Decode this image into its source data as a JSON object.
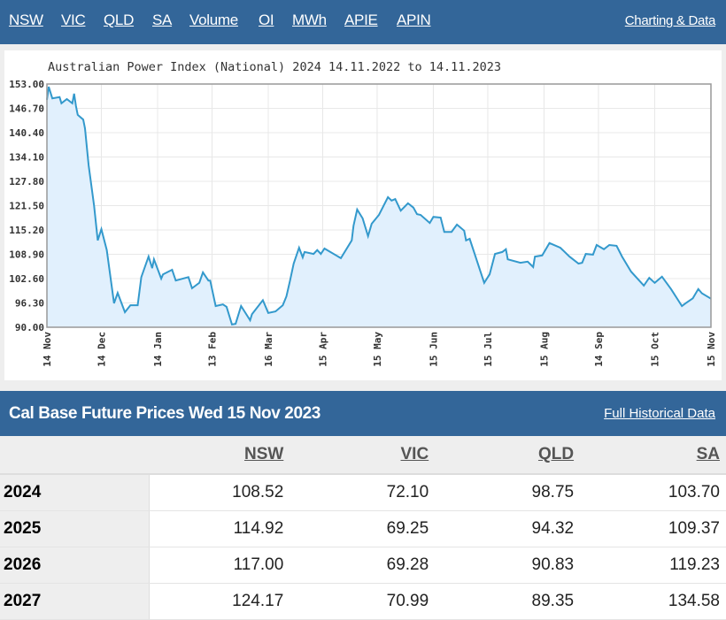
{
  "nav": {
    "items": [
      "NSW",
      "VIC",
      "QLD",
      "SA",
      "Volume",
      "OI",
      "MWh",
      "APIE",
      "APIN"
    ],
    "right_link": "Charting & Data"
  },
  "colors": {
    "brand": "#336699",
    "line": "#3399cc",
    "fill": "#e1f0fd"
  },
  "chart_data": {
    "type": "area",
    "title": "Australian Power Index (National) 2024 14.11.2022 to 14.11.2023",
    "ylim": [
      90.0,
      153.0
    ],
    "yticks": [
      "153.00",
      "146.70",
      "140.40",
      "134.10",
      "127.80",
      "121.50",
      "115.20",
      "108.90",
      "102.60",
      "96.30",
      "90.00"
    ],
    "xlim": [
      "2022-11-14",
      "2023-11-15"
    ],
    "xticks": [
      {
        "date": "2022-11-14",
        "label": "14 Nov"
      },
      {
        "date": "2022-12-14",
        "label": "14 Dec"
      },
      {
        "date": "2023-01-14",
        "label": "14 Jan"
      },
      {
        "date": "2023-02-13",
        "label": "13 Feb"
      },
      {
        "date": "2023-03-16",
        "label": "16 Mar"
      },
      {
        "date": "2023-04-15",
        "label": "15 Apr"
      },
      {
        "date": "2023-05-15",
        "label": "15 May"
      },
      {
        "date": "2023-06-15",
        "label": "15 Jun"
      },
      {
        "date": "2023-07-15",
        "label": "15 Jul"
      },
      {
        "date": "2023-08-15",
        "label": "15 Aug"
      },
      {
        "date": "2023-09-14",
        "label": "14 Sep"
      },
      {
        "date": "2023-10-15",
        "label": "15 Oct"
      },
      {
        "date": "2023-11-15",
        "label": "15 Nov"
      }
    ],
    "grid": true,
    "points": [
      [
        "2022-11-14",
        148.9
      ],
      [
        "2022-11-15",
        152.3
      ],
      [
        "2022-11-17",
        149.3
      ],
      [
        "2022-11-21",
        149.6
      ],
      [
        "2022-11-22",
        148.0
      ],
      [
        "2022-11-25",
        149.1
      ],
      [
        "2022-11-28",
        148.0
      ],
      [
        "2022-11-29",
        150.5
      ],
      [
        "2022-11-30",
        147.3
      ],
      [
        "2022-12-01",
        145.0
      ],
      [
        "2022-12-04",
        143.8
      ],
      [
        "2022-12-05",
        141.5
      ],
      [
        "2022-12-07",
        132.0
      ],
      [
        "2022-12-10",
        121.4
      ],
      [
        "2022-12-12",
        112.5
      ],
      [
        "2022-12-14",
        115.4
      ],
      [
        "2022-12-17",
        110.0
      ],
      [
        "2022-12-21",
        96.2
      ],
      [
        "2022-12-23",
        98.9
      ],
      [
        "2022-12-27",
        93.9
      ],
      [
        "2022-12-30",
        95.7
      ],
      [
        "2023-01-03",
        95.7
      ],
      [
        "2023-01-05",
        103.0
      ],
      [
        "2023-01-09",
        108.3
      ],
      [
        "2023-01-11",
        105.3
      ],
      [
        "2023-01-12",
        107.6
      ],
      [
        "2023-01-16",
        102.6
      ],
      [
        "2023-01-17",
        103.7
      ],
      [
        "2023-01-22",
        104.9
      ],
      [
        "2023-01-24",
        102.1
      ],
      [
        "2023-01-31",
        103.0
      ],
      [
        "2023-02-02",
        100.1
      ],
      [
        "2023-02-06",
        101.5
      ],
      [
        "2023-02-08",
        104.2
      ],
      [
        "2023-02-11",
        102.1
      ],
      [
        "2023-02-12",
        102.1
      ],
      [
        "2023-02-15",
        95.5
      ],
      [
        "2023-02-19",
        95.9
      ],
      [
        "2023-02-21",
        95.3
      ],
      [
        "2023-02-24",
        90.7
      ],
      [
        "2023-02-26",
        90.9
      ],
      [
        "2023-03-01",
        95.5
      ],
      [
        "2023-03-06",
        91.8
      ],
      [
        "2023-03-07",
        93.4
      ],
      [
        "2023-03-13",
        97.0
      ],
      [
        "2023-03-16",
        93.7
      ],
      [
        "2023-03-20",
        94.1
      ],
      [
        "2023-03-24",
        95.7
      ],
      [
        "2023-03-26",
        98.0
      ],
      [
        "2023-03-28",
        102.1
      ],
      [
        "2023-03-30",
        106.5
      ],
      [
        "2023-04-02",
        110.6
      ],
      [
        "2023-04-04",
        108.1
      ],
      [
        "2023-04-05",
        109.5
      ],
      [
        "2023-04-10",
        109.0
      ],
      [
        "2023-04-12",
        110.0
      ],
      [
        "2023-04-14",
        109.0
      ],
      [
        "2023-04-16",
        110.4
      ],
      [
        "2023-04-25",
        107.9
      ],
      [
        "2023-05-01",
        112.5
      ],
      [
        "2023-05-02",
        116.3
      ],
      [
        "2023-05-04",
        120.5
      ],
      [
        "2023-05-07",
        118.2
      ],
      [
        "2023-05-10",
        113.6
      ],
      [
        "2023-05-12",
        116.8
      ],
      [
        "2023-05-16",
        119.1
      ],
      [
        "2023-05-21",
        123.7
      ],
      [
        "2023-05-23",
        122.8
      ],
      [
        "2023-05-25",
        123.2
      ],
      [
        "2023-05-28",
        120.2
      ],
      [
        "2023-06-01",
        122.1
      ],
      [
        "2023-06-04",
        121.0
      ],
      [
        "2023-06-06",
        119.3
      ],
      [
        "2023-06-08",
        119.1
      ],
      [
        "2023-06-13",
        117.0
      ],
      [
        "2023-06-15",
        118.6
      ],
      [
        "2023-06-19",
        118.4
      ],
      [
        "2023-06-21",
        114.7
      ],
      [
        "2023-06-25",
        114.7
      ],
      [
        "2023-06-28",
        116.6
      ],
      [
        "2023-07-02",
        115.0
      ],
      [
        "2023-07-03",
        112.5
      ],
      [
        "2023-07-05",
        112.9
      ],
      [
        "2023-07-13",
        101.5
      ],
      [
        "2023-07-16",
        103.7
      ],
      [
        "2023-07-19",
        109.0
      ],
      [
        "2023-07-23",
        109.5
      ],
      [
        "2023-07-25",
        110.2
      ],
      [
        "2023-07-26",
        107.6
      ],
      [
        "2023-08-02",
        106.7
      ],
      [
        "2023-08-06",
        107.0
      ],
      [
        "2023-08-09",
        105.6
      ],
      [
        "2023-08-10",
        108.3
      ],
      [
        "2023-08-14",
        108.6
      ],
      [
        "2023-08-18",
        111.8
      ],
      [
        "2023-08-24",
        110.6
      ],
      [
        "2023-08-29",
        108.3
      ],
      [
        "2023-09-03",
        106.5
      ],
      [
        "2023-09-05",
        106.7
      ],
      [
        "2023-09-07",
        109.0
      ],
      [
        "2023-09-11",
        108.8
      ],
      [
        "2023-09-13",
        111.3
      ],
      [
        "2023-09-17",
        110.2
      ],
      [
        "2023-09-20",
        111.3
      ],
      [
        "2023-09-24",
        111.1
      ],
      [
        "2023-09-27",
        108.3
      ],
      [
        "2023-10-02",
        104.4
      ],
      [
        "2023-10-09",
        100.8
      ],
      [
        "2023-10-12",
        102.8
      ],
      [
        "2023-10-15",
        101.5
      ],
      [
        "2023-10-19",
        103.1
      ],
      [
        "2023-10-24",
        99.9
      ],
      [
        "2023-10-30",
        95.5
      ],
      [
        "2023-11-01",
        96.2
      ],
      [
        "2023-11-05",
        97.5
      ],
      [
        "2023-11-08",
        99.9
      ],
      [
        "2023-11-10",
        98.8
      ],
      [
        "2023-11-15",
        97.4
      ]
    ]
  },
  "prices": {
    "title": "Cal Base Future Prices Wed 15 Nov 2023",
    "link": "Full Historical Data",
    "columns": [
      "NSW",
      "VIC",
      "QLD",
      "SA"
    ],
    "rows": [
      {
        "year": "2024",
        "values": [
          "108.52",
          "72.10",
          "98.75",
          "103.70"
        ]
      },
      {
        "year": "2025",
        "values": [
          "114.92",
          "69.25",
          "94.32",
          "109.37"
        ]
      },
      {
        "year": "2026",
        "values": [
          "117.00",
          "69.28",
          "90.83",
          "119.23"
        ]
      },
      {
        "year": "2027",
        "values": [
          "124.17",
          "70.99",
          "89.35",
          "134.58"
        ]
      }
    ]
  }
}
